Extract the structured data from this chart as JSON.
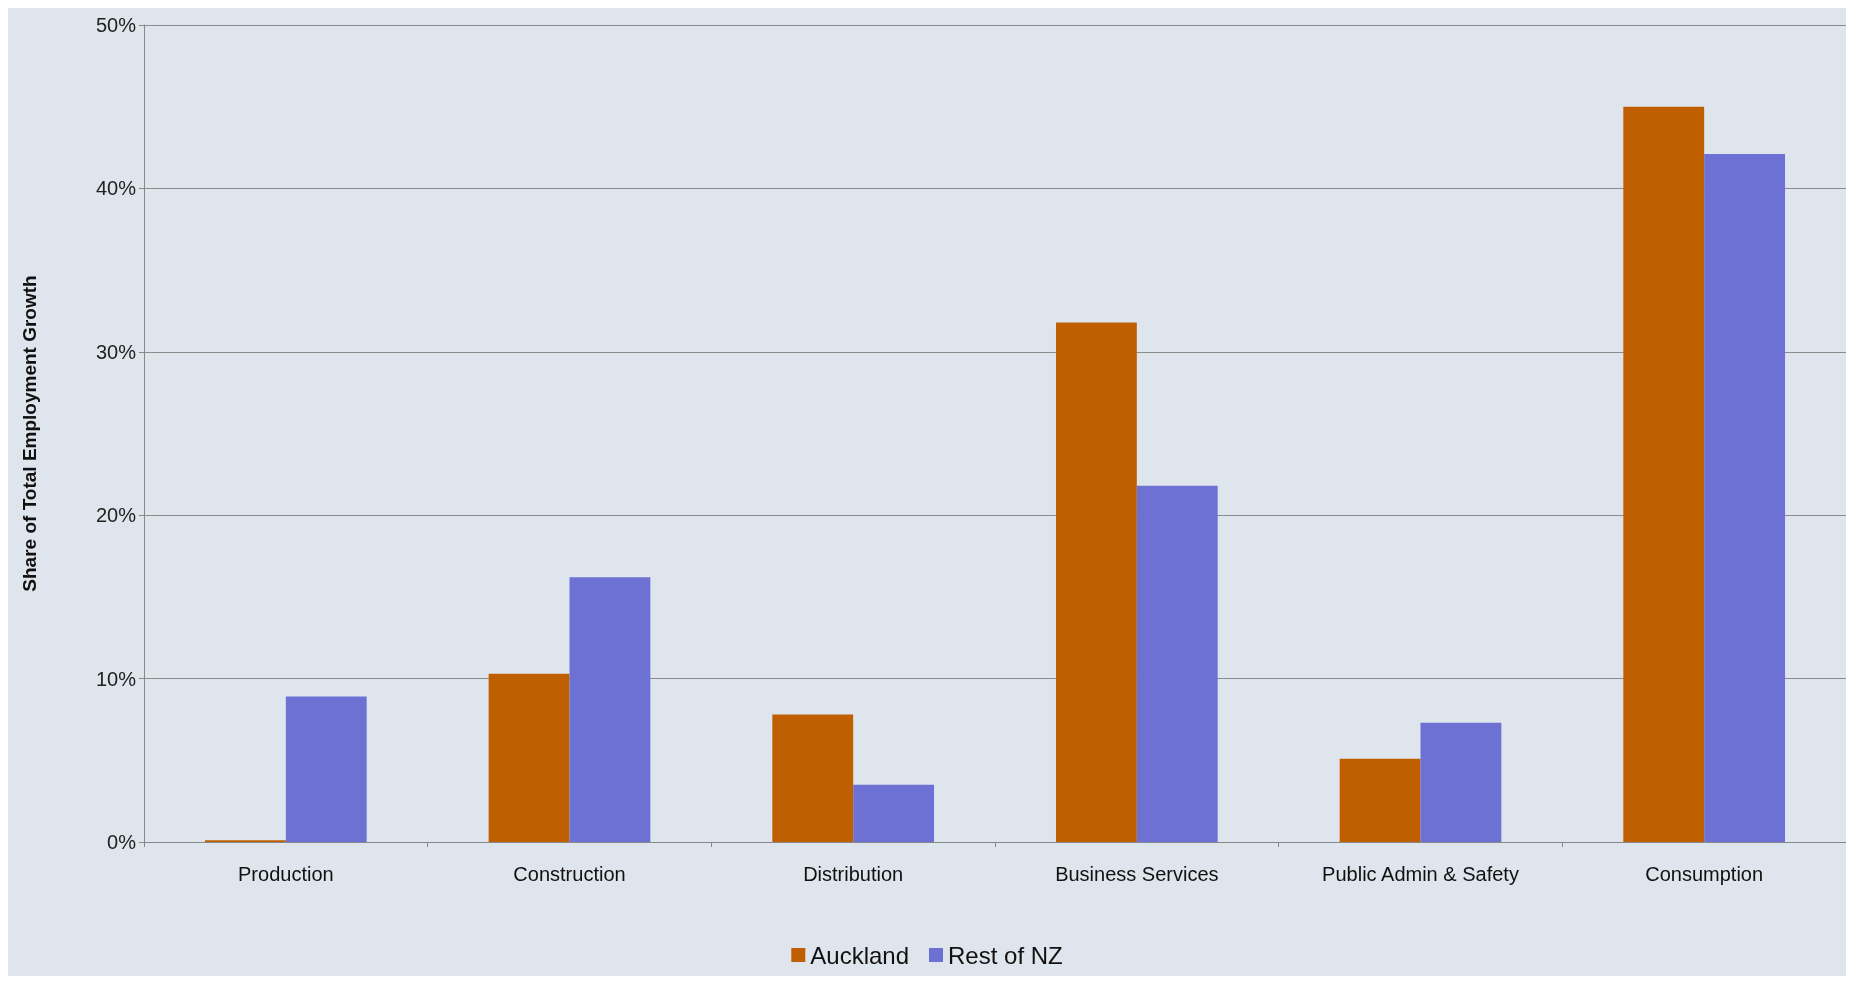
{
  "chart_data": {
    "type": "bar",
    "ylabel": "Share of Total Employment Growth",
    "categories": [
      "Production",
      "Construction",
      "Distribution",
      "Business Services",
      "Public Admin & Safety",
      "Consumption"
    ],
    "series": [
      {
        "name": "Auckland",
        "color": "#c05f00",
        "values": [
          0.1,
          10.3,
          7.8,
          31.8,
          5.1,
          45.0
        ]
      },
      {
        "name": "Rest of NZ",
        "color": "#6e71d4",
        "values": [
          8.9,
          16.2,
          3.5,
          21.8,
          7.3,
          42.1
        ]
      }
    ],
    "ylim": [
      0,
      50
    ],
    "yticks": [
      {
        "value": 0,
        "label": "0%"
      },
      {
        "value": 10,
        "label": "10%"
      },
      {
        "value": 20,
        "label": "20%"
      },
      {
        "value": 30,
        "label": "30%"
      },
      {
        "value": 40,
        "label": "40%"
      },
      {
        "value": 50,
        "label": "50%"
      }
    ],
    "grid": "y",
    "legend": "bottom"
  }
}
